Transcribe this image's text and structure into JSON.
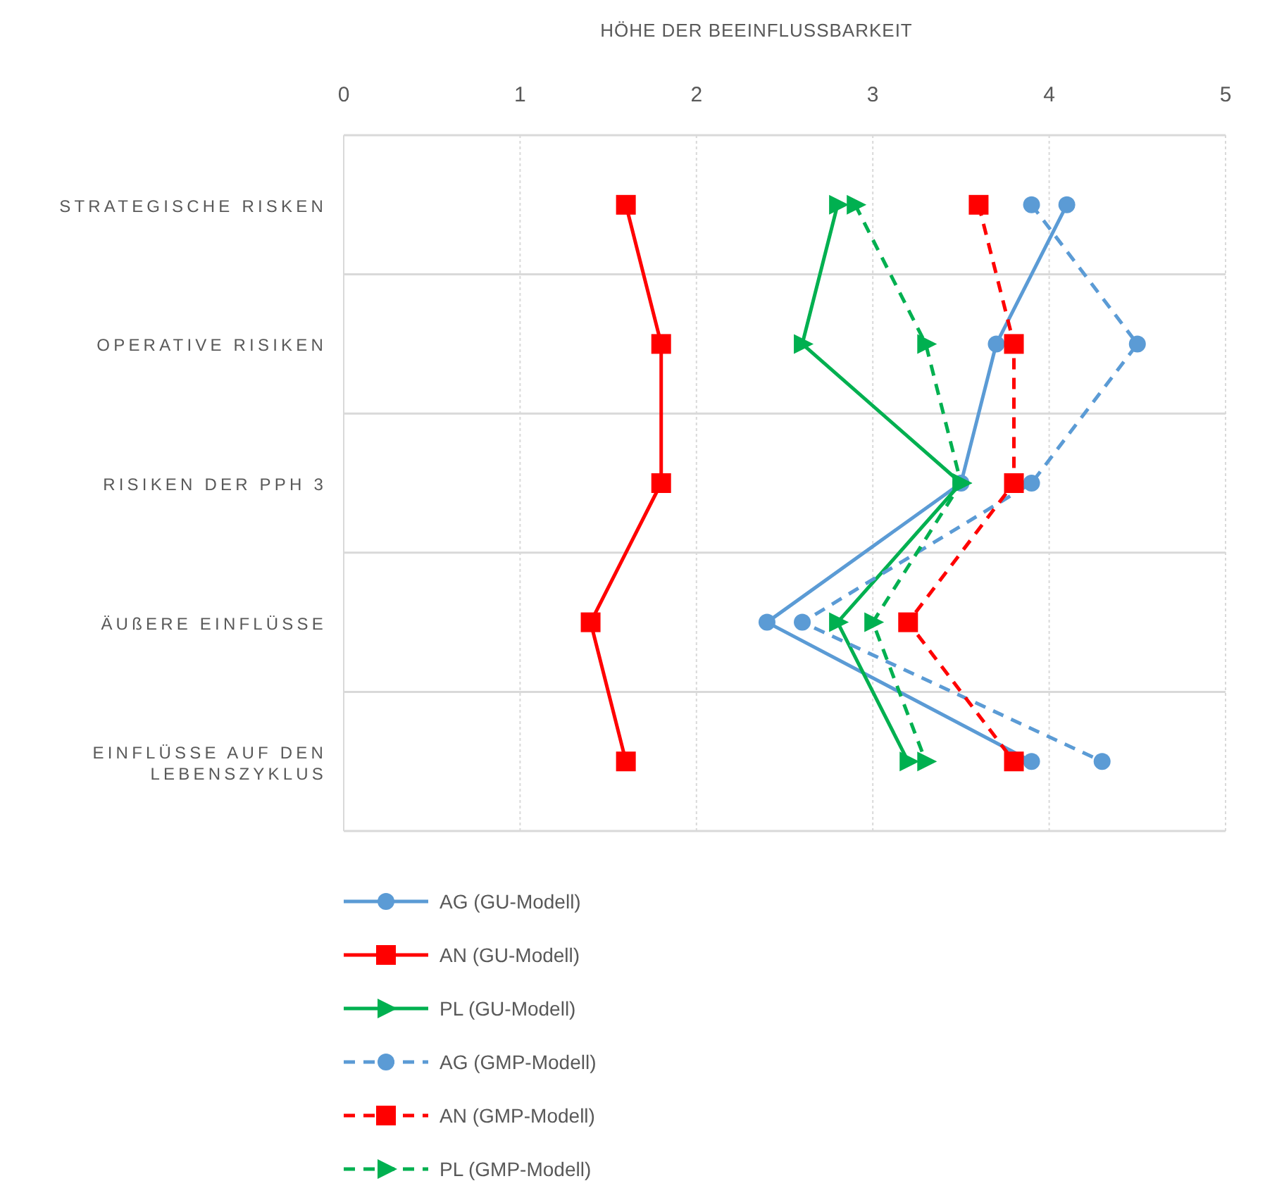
{
  "chart_data": {
    "type": "line",
    "orientation": "horizontal",
    "xlabel": "HÖHE DER BEEINFLUSSBARKEIT",
    "categories": [
      "STRATEGISCHE RISKEN",
      "OPERATIVE RISIKEN",
      "RISIKEN DER PPH 3",
      "ÄUßERE EINFLÜSSE",
      "EINFLÜSSE AUF DEN LEBENSZYKLUS"
    ],
    "xlim": [
      0,
      5
    ],
    "xticks": [
      0,
      1,
      2,
      3,
      4,
      5
    ],
    "grid": true,
    "legend": "bottom",
    "series": [
      {
        "name": "AG (GU-Modell)",
        "color": "#5b9bd5",
        "marker": "circle",
        "line_style": "solid",
        "values": [
          4.1,
          3.7,
          3.5,
          2.4,
          3.9
        ]
      },
      {
        "name": "AN (GU-Modell)",
        "color": "#ff0000",
        "marker": "square",
        "line_style": "solid",
        "values": [
          1.6,
          1.8,
          1.8,
          1.4,
          1.6
        ]
      },
      {
        "name": "PL (GU-Modell)",
        "color": "#00b050",
        "marker": "triangle",
        "line_style": "solid",
        "values": [
          2.8,
          2.6,
          3.5,
          2.8,
          3.2
        ]
      },
      {
        "name": "AG (GMP-Modell)",
        "color": "#5b9bd5",
        "marker": "circle",
        "line_style": "dashed",
        "values": [
          3.9,
          4.5,
          3.9,
          2.6,
          4.3
        ]
      },
      {
        "name": "AN (GMP-Modell)",
        "color": "#ff0000",
        "marker": "square",
        "line_style": "dashed",
        "values": [
          3.6,
          3.8,
          3.8,
          3.2,
          3.8
        ]
      },
      {
        "name": "PL (GMP-Modell)",
        "color": "#00b050",
        "marker": "triangle",
        "line_style": "dashed",
        "values": [
          2.9,
          3.3,
          3.5,
          3.0,
          3.3
        ]
      }
    ]
  }
}
